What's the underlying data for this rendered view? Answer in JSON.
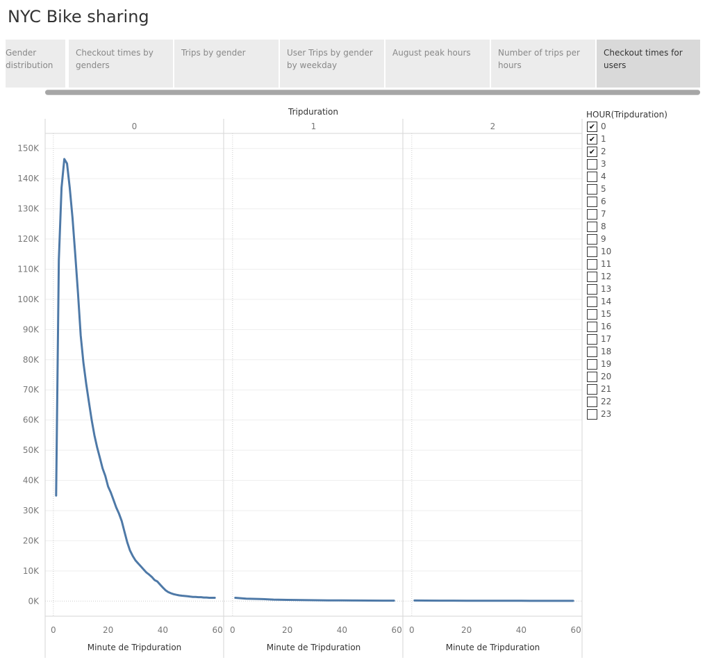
{
  "page_title": "NYC Bike sharing",
  "tabs": [
    {
      "line1": "Gender",
      "line2": "distribution",
      "active": false
    },
    {
      "line1": "Checkout times by",
      "line2": "genders",
      "active": false
    },
    {
      "line1": "Trips by gender",
      "line2": "",
      "active": false
    },
    {
      "line1": "User Trips by gender",
      "line2": "by weekday",
      "active": false
    },
    {
      "line1": "August peak hours",
      "line2": "",
      "active": false
    },
    {
      "line1": "Number of trips per",
      "line2": "hours",
      "active": false
    },
    {
      "line1": "Checkout times for",
      "line2": "users",
      "active": true
    }
  ],
  "legend": {
    "title": "HOUR(Tripduration)",
    "items": [
      {
        "label": "0",
        "checked": true
      },
      {
        "label": "1",
        "checked": true
      },
      {
        "label": "2",
        "checked": true
      },
      {
        "label": "3",
        "checked": false
      },
      {
        "label": "4",
        "checked": false
      },
      {
        "label": "5",
        "checked": false
      },
      {
        "label": "6",
        "checked": false
      },
      {
        "label": "7",
        "checked": false
      },
      {
        "label": "8",
        "checked": false
      },
      {
        "label": "9",
        "checked": false
      },
      {
        "label": "10",
        "checked": false
      },
      {
        "label": "11",
        "checked": false
      },
      {
        "label": "12",
        "checked": false
      },
      {
        "label": "13",
        "checked": false
      },
      {
        "label": "14",
        "checked": false
      },
      {
        "label": "15",
        "checked": false
      },
      {
        "label": "16",
        "checked": false
      },
      {
        "label": "17",
        "checked": false
      },
      {
        "label": "18",
        "checked": false
      },
      {
        "label": "19",
        "checked": false
      },
      {
        "label": "20",
        "checked": false
      },
      {
        "label": "21",
        "checked": false
      },
      {
        "label": "22",
        "checked": false
      },
      {
        "label": "23",
        "checked": false
      }
    ]
  },
  "chart_data": {
    "type": "line",
    "column_header": "Tripduration",
    "panels": [
      "0",
      "1",
      "2"
    ],
    "xlabel": "Minute de Tripduration",
    "xlim": [
      -3,
      62
    ],
    "xticks": [
      0,
      20,
      40,
      60
    ],
    "ylim": [
      -5000,
      155000
    ],
    "yticks": [
      0,
      10000,
      20000,
      30000,
      40000,
      50000,
      60000,
      70000,
      80000,
      90000,
      100000,
      110000,
      120000,
      130000,
      140000,
      150000
    ],
    "ytick_labels": [
      "0K",
      "10K",
      "20K",
      "30K",
      "40K",
      "50K",
      "60K",
      "70K",
      "80K",
      "90K",
      "100K",
      "110K",
      "120K",
      "130K",
      "140K",
      "150K"
    ],
    "line_color": "#4e79a7",
    "series": [
      {
        "panel": "0",
        "x": [
          1,
          2,
          3,
          4,
          5,
          6,
          7,
          8,
          9,
          10,
          11,
          12,
          13,
          14,
          15,
          16,
          17,
          18,
          19,
          20,
          21,
          22,
          23,
          24,
          25,
          26,
          27,
          28,
          29,
          30,
          31,
          32,
          33,
          34,
          35,
          36,
          37,
          38,
          39,
          40,
          41,
          42,
          43,
          44,
          45,
          46,
          47,
          48,
          49,
          50,
          51,
          52,
          53,
          54,
          55,
          56,
          57,
          58,
          59
        ],
        "y": [
          35000,
          113000,
          137000,
          146500,
          145000,
          137000,
          127000,
          115000,
          102000,
          88000,
          79000,
          72000,
          66000,
          60000,
          55000,
          51000,
          47500,
          44000,
          41500,
          38000,
          36000,
          33500,
          31000,
          29000,
          26500,
          23000,
          19500,
          16800,
          15000,
          13500,
          12500,
          11500,
          10500,
          9500,
          8800,
          8000,
          7000,
          6500,
          5500,
          4500,
          3600,
          3000,
          2600,
          2300,
          2100,
          1900,
          1800,
          1700,
          1600,
          1500,
          1400,
          1400,
          1300,
          1300,
          1200,
          1200,
          1100,
          1100,
          1100
        ]
      },
      {
        "panel": "1",
        "x": [
          1,
          5,
          10,
          15,
          20,
          25,
          30,
          35,
          40,
          45,
          50,
          55,
          59
        ],
        "y": [
          1100,
          800,
          700,
          500,
          400,
          350,
          300,
          250,
          220,
          200,
          180,
          160,
          150
        ]
      },
      {
        "panel": "2",
        "x": [
          1,
          5,
          10,
          15,
          20,
          25,
          30,
          35,
          40,
          45,
          50,
          55,
          59
        ],
        "y": [
          200,
          180,
          160,
          150,
          140,
          130,
          120,
          110,
          100,
          95,
          90,
          85,
          80
        ]
      }
    ]
  }
}
